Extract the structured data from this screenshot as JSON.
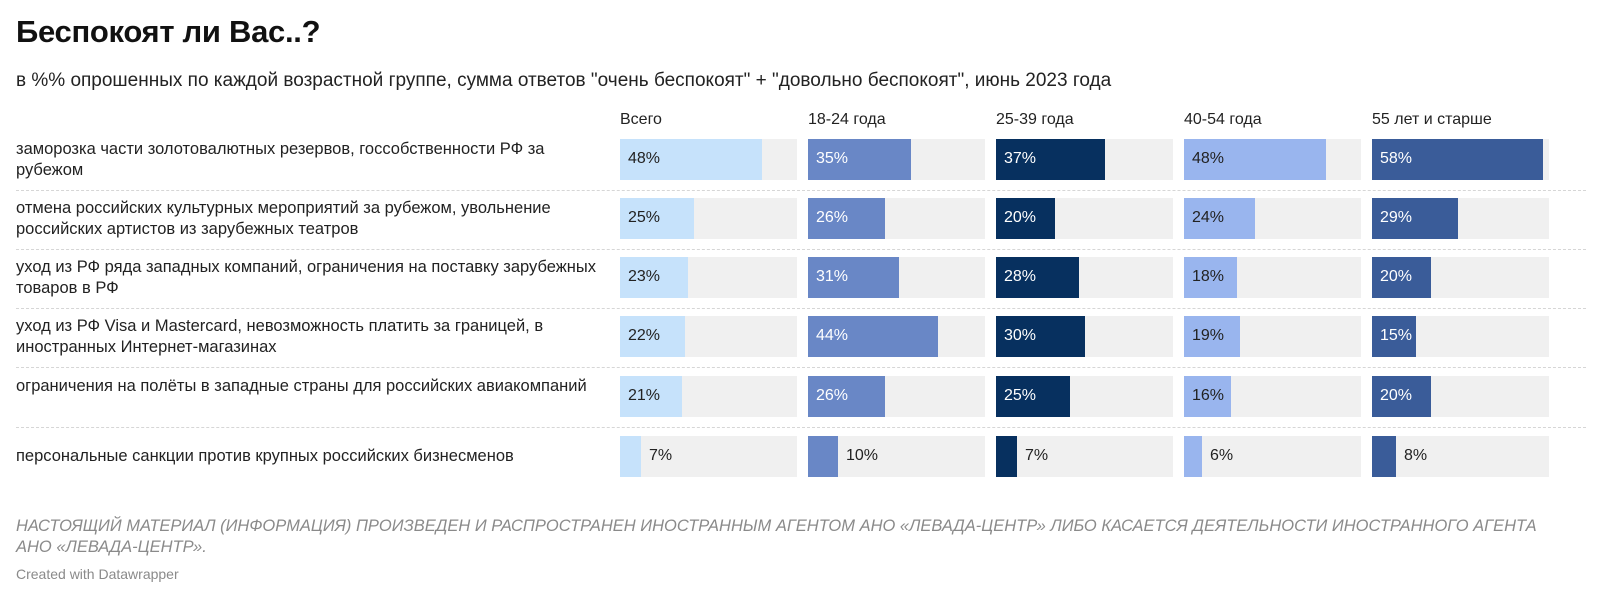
{
  "header": {
    "title": "Беспокоят ли Вас..?",
    "subtitle": "в %% опрошенных по каждой возрастной группе, сумма ответов \"очень беспокоят\" + \"довольно беспокоят\", июнь 2023 года"
  },
  "chart_data": {
    "type": "bar",
    "orientation": "horizontal",
    "layout": "small-multiples",
    "title": "Беспокоят ли Вас..?",
    "subtitle": "в %% опрошенных по каждой возрастной группе, сумма ответов \"очень беспокоят\" + \"довольно беспокоят\", июнь 2023 года",
    "xlim": [
      0,
      60
    ],
    "unit": "%",
    "categories": [
      "заморозка части золотовалютных резервов, госсобственности РФ за рубежом",
      "отмена российских культурных мероприятий за рубежом, увольнение российских артистов из зарубежных театров",
      "уход из РФ ряда западных компаний, ограничения на поставку зарубежных товаров в РФ",
      "уход из РФ Visa и Mastercard, невозможность платить за границей, в иностранных Интернет-магазинах",
      "ограничения на полёты в западные страны для российских авиакомпаний",
      "персональные санкции против крупных российских бизнесменов"
    ],
    "series": [
      {
        "name": "Всего",
        "color": "#c6e2fb",
        "values": [
          48,
          25,
          23,
          22,
          21,
          7
        ]
      },
      {
        "name": "18-24 года",
        "color": "#6987c6",
        "values": [
          35,
          26,
          31,
          44,
          26,
          10
        ]
      },
      {
        "name": "25-39 года",
        "color": "#07305f",
        "values": [
          37,
          20,
          28,
          30,
          25,
          7
        ]
      },
      {
        "name": "40-54 года",
        "color": "#99b5ee",
        "values": [
          48,
          24,
          18,
          19,
          16,
          6
        ]
      },
      {
        "name": "55 лет и старше",
        "color": "#3a5c99",
        "values": [
          58,
          29,
          20,
          15,
          20,
          8
        ]
      }
    ]
  },
  "footer": {
    "note": "НАСТОЯЩИЙ МАТЕРИАЛ (ИНФОРМАЦИЯ) ПРОИЗВЕДЕН И РАСПРОСТРАНЕН ИНОСТРАННЫМ АГЕНТОМ АНО «ЛЕВАДА-ЦЕНТР» ЛИБО КАСАЕТСЯ ДЕЯТЕЛЬНОСТИ ИНОСТРАННОГО АГЕНТА АНО «ЛЕВАДА-ЦЕНТР».",
    "credit": "Created with Datawrapper"
  }
}
